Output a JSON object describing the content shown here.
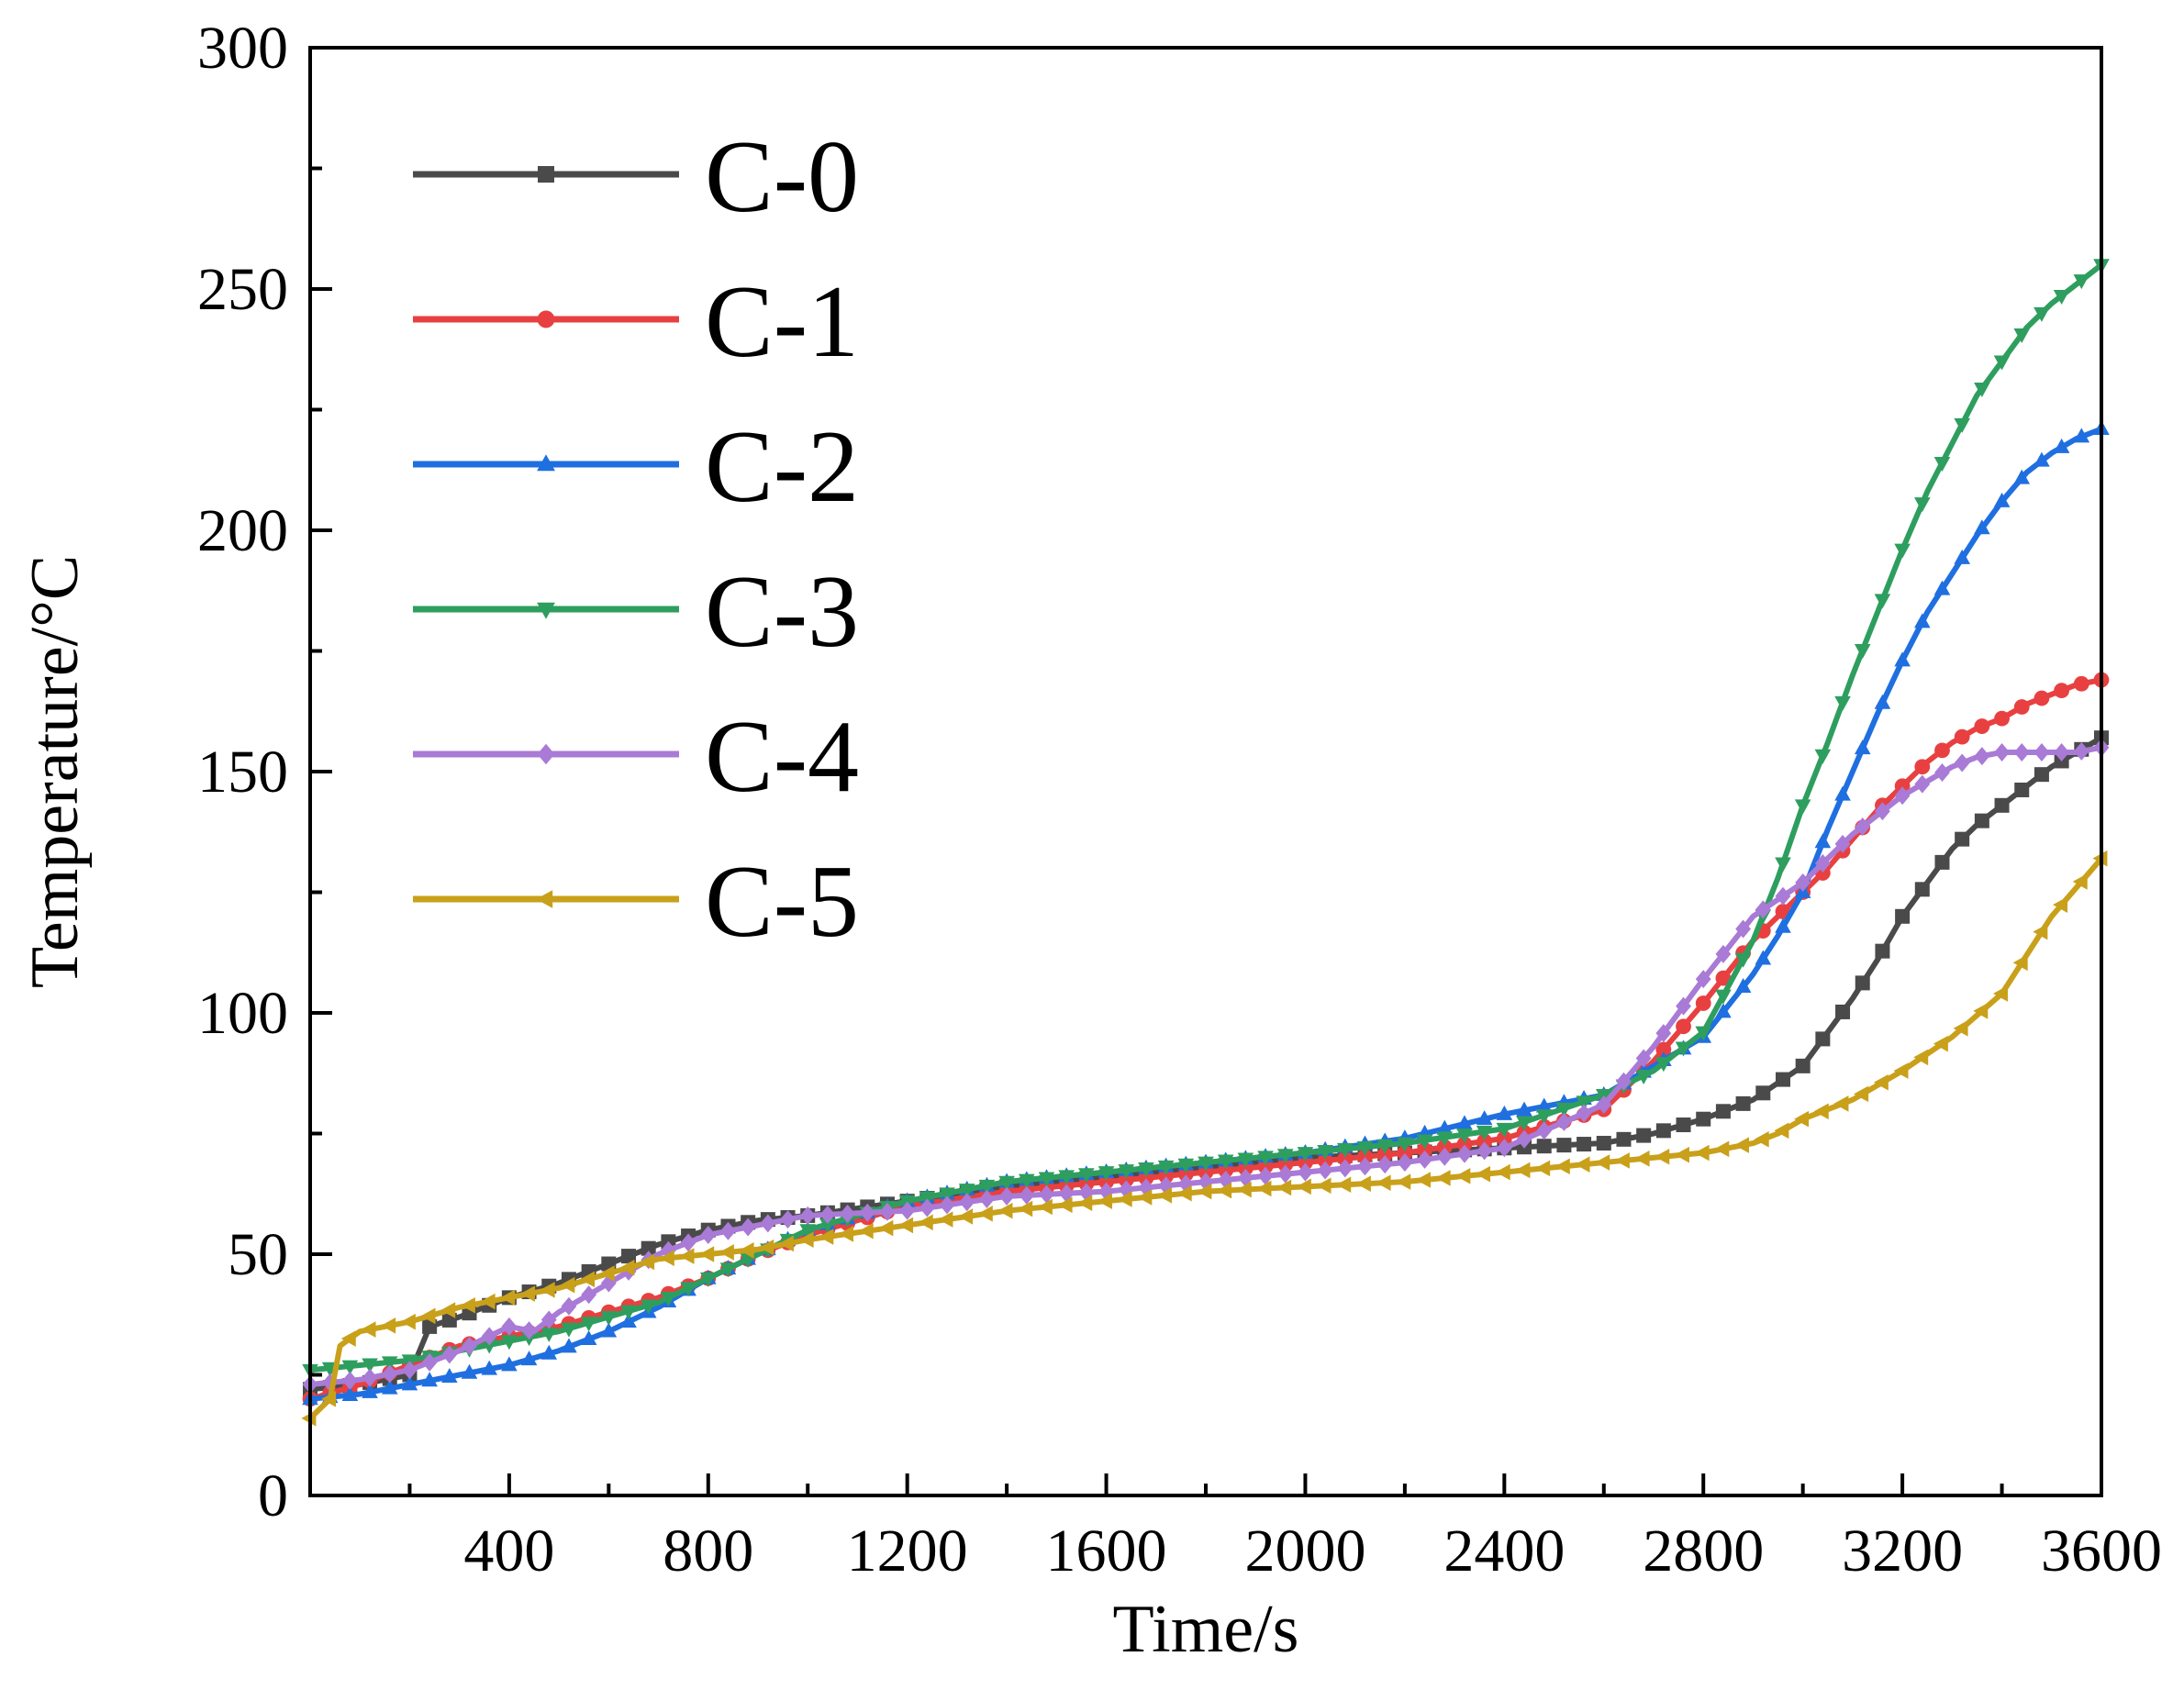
{
  "chart_data": {
    "type": "line",
    "title": "",
    "xlabel": "Time/s",
    "ylabel": "Temperature/°C",
    "xlim": [
      0,
      3600
    ],
    "ylim": [
      0,
      300
    ],
    "xticks": [
      400,
      800,
      1200,
      1600,
      2000,
      2400,
      2800,
      3200,
      3600
    ],
    "xticklabels": [
      "400",
      "800",
      "1200",
      "1600",
      "2000",
      "2400",
      "2800",
      "3200",
      "3600"
    ],
    "yticks": [
      0,
      50,
      100,
      150,
      200,
      250,
      300
    ],
    "yticklabels": [
      "0",
      "50",
      "100",
      "150",
      "200",
      "250",
      "300"
    ],
    "grid": false,
    "legend_position": "top-left",
    "series": [
      {
        "name": "C-0",
        "color": "#4a4a4a",
        "marker": "square",
        "x": [
          0,
          100,
          200,
          240,
          300,
          400,
          500,
          600,
          700,
          800,
          900,
          1000,
          1200,
          1400,
          1600,
          1800,
          2000,
          2200,
          2400,
          2600,
          2700,
          2800,
          2900,
          3000,
          3050,
          3100,
          3150,
          3200,
          3250,
          3300,
          3350,
          3400,
          3450,
          3500,
          3550,
          3600
        ],
        "y": [
          22,
          23,
          25,
          35,
          37,
          41,
          44,
          48,
          52,
          55,
          57,
          58,
          61,
          64,
          66,
          68,
          70,
          71,
          72,
          73,
          75,
          78,
          82,
          89,
          96,
          103,
          111,
          120,
          127,
          134,
          139,
          143,
          147,
          151,
          154,
          157
        ]
      },
      {
        "name": "C-1",
        "color": "#e84040",
        "marker": "circle",
        "x": [
          0,
          100,
          200,
          300,
          400,
          500,
          600,
          700,
          800,
          900,
          1000,
          1200,
          1400,
          1600,
          1800,
          2000,
          2200,
          2400,
          2600,
          2700,
          2800,
          2900,
          3000,
          3050,
          3100,
          3150,
          3200,
          3250,
          3300,
          3350,
          3400,
          3450,
          3500,
          3550,
          3600
        ],
        "y": [
          20,
          23,
          27,
          31,
          33,
          35,
          38,
          41,
          45,
          50,
          54,
          60,
          63,
          65,
          67,
          69,
          71,
          74,
          80,
          90,
          102,
          115,
          125,
          130,
          136,
          142,
          147,
          152,
          156,
          159,
          161,
          164,
          166,
          168,
          169
        ]
      },
      {
        "name": "C-2",
        "color": "#1f6fe0",
        "marker": "triangle-up",
        "x": [
          0,
          100,
          200,
          300,
          400,
          500,
          600,
          700,
          800,
          900,
          1000,
          1200,
          1400,
          1600,
          1800,
          2000,
          2200,
          2400,
          2600,
          2700,
          2800,
          2900,
          2950,
          3000,
          3050,
          3100,
          3150,
          3200,
          3250,
          3300,
          3350,
          3400,
          3450,
          3500,
          3550,
          3600
        ],
        "y": [
          20,
          21,
          23,
          25,
          27,
          30,
          34,
          39,
          45,
          50,
          55,
          61,
          65,
          67,
          69,
          71,
          74,
          79,
          83,
          89,
          95,
          108,
          116,
          125,
          138,
          150,
          162,
          173,
          183,
          191,
          199,
          206,
          212,
          216,
          219,
          221
        ]
      },
      {
        "name": "C-3",
        "color": "#2e9e5e",
        "marker": "triangle-down",
        "x": [
          0,
          100,
          200,
          300,
          400,
          500,
          600,
          700,
          800,
          900,
          1000,
          1200,
          1400,
          1600,
          1800,
          2000,
          2200,
          2400,
          2600,
          2700,
          2800,
          2900,
          2950,
          3000,
          3050,
          3100,
          3150,
          3200,
          3250,
          3300,
          3350,
          3400,
          3450,
          3500,
          3550,
          3600
        ],
        "y": [
          26,
          27,
          28,
          30,
          32,
          34,
          37,
          40,
          45,
          50,
          55,
          61,
          65,
          67,
          69,
          71,
          73,
          76,
          83,
          88,
          96,
          115,
          128,
          143,
          156,
          170,
          183,
          196,
          208,
          218,
          228,
          235,
          242,
          247,
          251,
          255
        ]
      },
      {
        "name": "C-4",
        "color": "#a97ad6",
        "marker": "diamond",
        "x": [
          0,
          100,
          200,
          300,
          400,
          450,
          500,
          600,
          700,
          800,
          900,
          1000,
          1200,
          1400,
          1600,
          1800,
          2000,
          2200,
          2400,
          2600,
          2700,
          2800,
          2900,
          3000,
          3050,
          3100,
          3150,
          3200,
          3250,
          3300,
          3350,
          3400,
          3450,
          3500,
          3550,
          3600
        ],
        "y": [
          23,
          24,
          26,
          30,
          35,
          34,
          38,
          44,
          50,
          54,
          56,
          58,
          59,
          62,
          63,
          65,
          67,
          69,
          72,
          81,
          93,
          107,
          120,
          127,
          132,
          137,
          141,
          145,
          148,
          151,
          153,
          154,
          154,
          154,
          154,
          155
        ]
      },
      {
        "name": "C-5",
        "color": "#c9a01a",
        "marker": "triangle-left",
        "x": [
          0,
          40,
          60,
          100,
          200,
          300,
          400,
          500,
          600,
          700,
          800,
          900,
          1000,
          1200,
          1400,
          1600,
          1800,
          2000,
          2200,
          2400,
          2600,
          2800,
          2900,
          2950,
          3000,
          3100,
          3200,
          3300,
          3400,
          3450,
          3500,
          3550,
          3600
        ],
        "y": [
          16,
          20,
          31,
          34,
          36,
          39,
          41,
          43,
          46,
          49,
          50,
          51,
          53,
          56,
          59,
          61,
          63,
          64,
          65,
          67,
          69,
          71,
          73,
          75,
          78,
          82,
          88,
          95,
          104,
          112,
          120,
          126,
          132
        ]
      }
    ]
  }
}
